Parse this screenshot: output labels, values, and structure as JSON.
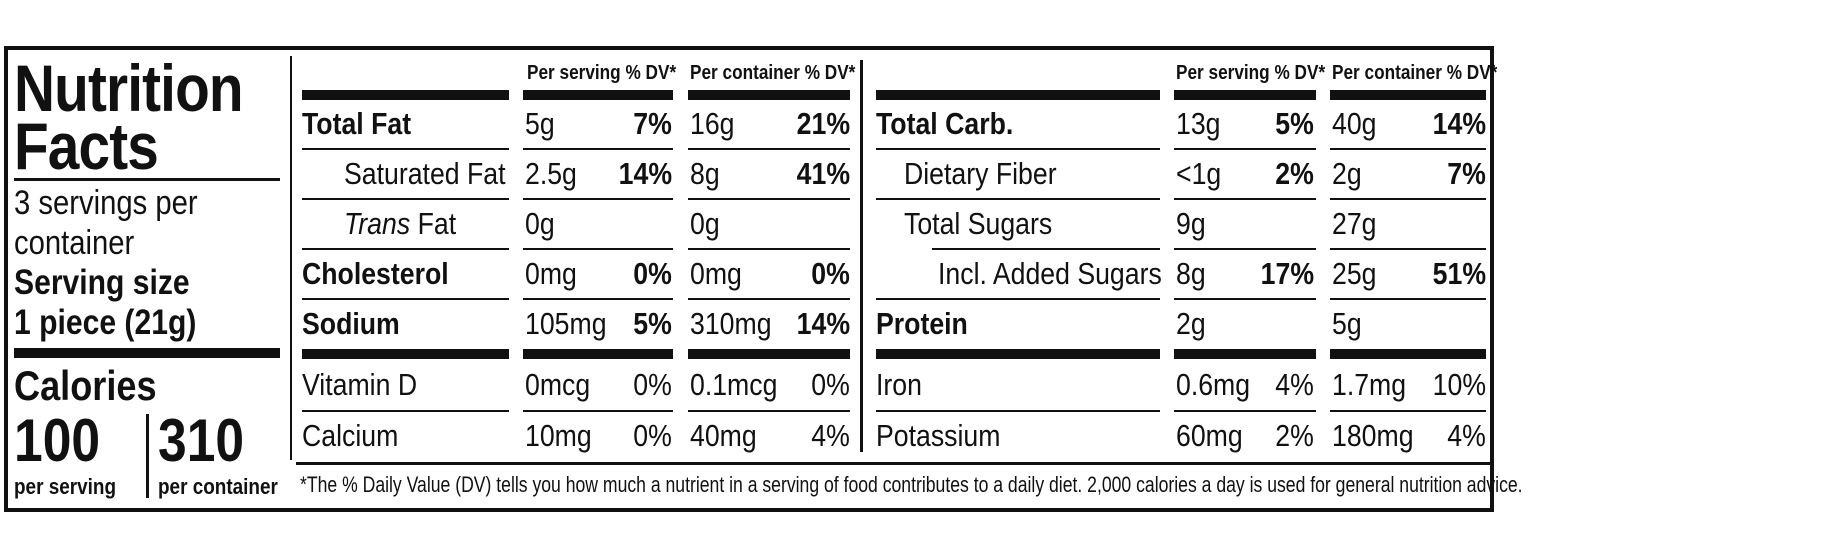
{
  "left_panel": {
    "title_line1": "Nutrition",
    "title_line2": "Facts",
    "servings_line1": "3 servings per",
    "servings_line2": "container",
    "serving_size_label": "Serving size",
    "serving_size_value": "1 piece (21g)",
    "calories_label": "Calories",
    "calories_per_serving": "100",
    "calories_per_container": "310",
    "per_serving_label": "per serving",
    "per_container_label": "per container"
  },
  "headers": {
    "per_serving": "Per serving % DV*",
    "per_container": "Per container % DV*"
  },
  "left_table": [
    {
      "name": "Total Fat",
      "serv_amt": "5g",
      "serv_dv": "7%",
      "cont_amt": "16g",
      "cont_dv": "21%"
    },
    {
      "name": "Saturated Fat",
      "serv_amt": "2.5g",
      "serv_dv": "14%",
      "cont_amt": "8g",
      "cont_dv": "41%"
    },
    {
      "name_italic": "Trans",
      "name": " Fat",
      "serv_amt": "0g",
      "serv_dv": "",
      "cont_amt": "0g",
      "cont_dv": ""
    },
    {
      "name": "Cholesterol",
      "serv_amt": "0mg",
      "serv_dv": "0%",
      "cont_amt": "0mg",
      "cont_dv": "0%"
    },
    {
      "name": "Sodium",
      "serv_amt": "105mg",
      "serv_dv": "5%",
      "cont_amt": "310mg",
      "cont_dv": "14%"
    },
    {
      "name": "Vitamin D",
      "serv_amt": "0mcg",
      "serv_dv": "0%",
      "cont_amt": "0.1mcg",
      "cont_dv": "0%"
    },
    {
      "name": "Calcium",
      "serv_amt": "10mg",
      "serv_dv": "0%",
      "cont_amt": "40mg",
      "cont_dv": "4%"
    }
  ],
  "right_table": [
    {
      "name": "Total Carb.",
      "serv_amt": "13g",
      "serv_dv": "5%",
      "cont_amt": "40g",
      "cont_dv": "14%"
    },
    {
      "name": "Dietary Fiber",
      "serv_amt": "<1g",
      "serv_dv": "2%",
      "cont_amt": "2g",
      "cont_dv": "7%"
    },
    {
      "name": "Total Sugars",
      "serv_amt": "9g",
      "serv_dv": "",
      "cont_amt": "27g",
      "cont_dv": ""
    },
    {
      "name": "Incl. Added Sugars",
      "serv_amt": "8g",
      "serv_dv": "17%",
      "cont_amt": "25g",
      "cont_dv": "51%"
    },
    {
      "name": "Protein",
      "serv_amt": "2g",
      "serv_dv": "",
      "cont_amt": "5g",
      "cont_dv": ""
    },
    {
      "name": "Iron",
      "serv_amt": "0.6mg",
      "serv_dv": "4%",
      "cont_amt": "1.7mg",
      "cont_dv": "10%"
    },
    {
      "name": "Potassium",
      "serv_amt": "60mg",
      "serv_dv": "2%",
      "cont_amt": "180mg",
      "cont_dv": "4%"
    }
  ],
  "footnote": "*The % Daily Value (DV) tells you how much a nutrient in a serving of food contributes to a daily diet. 2,000 calories a day is used for general nutrition advice."
}
